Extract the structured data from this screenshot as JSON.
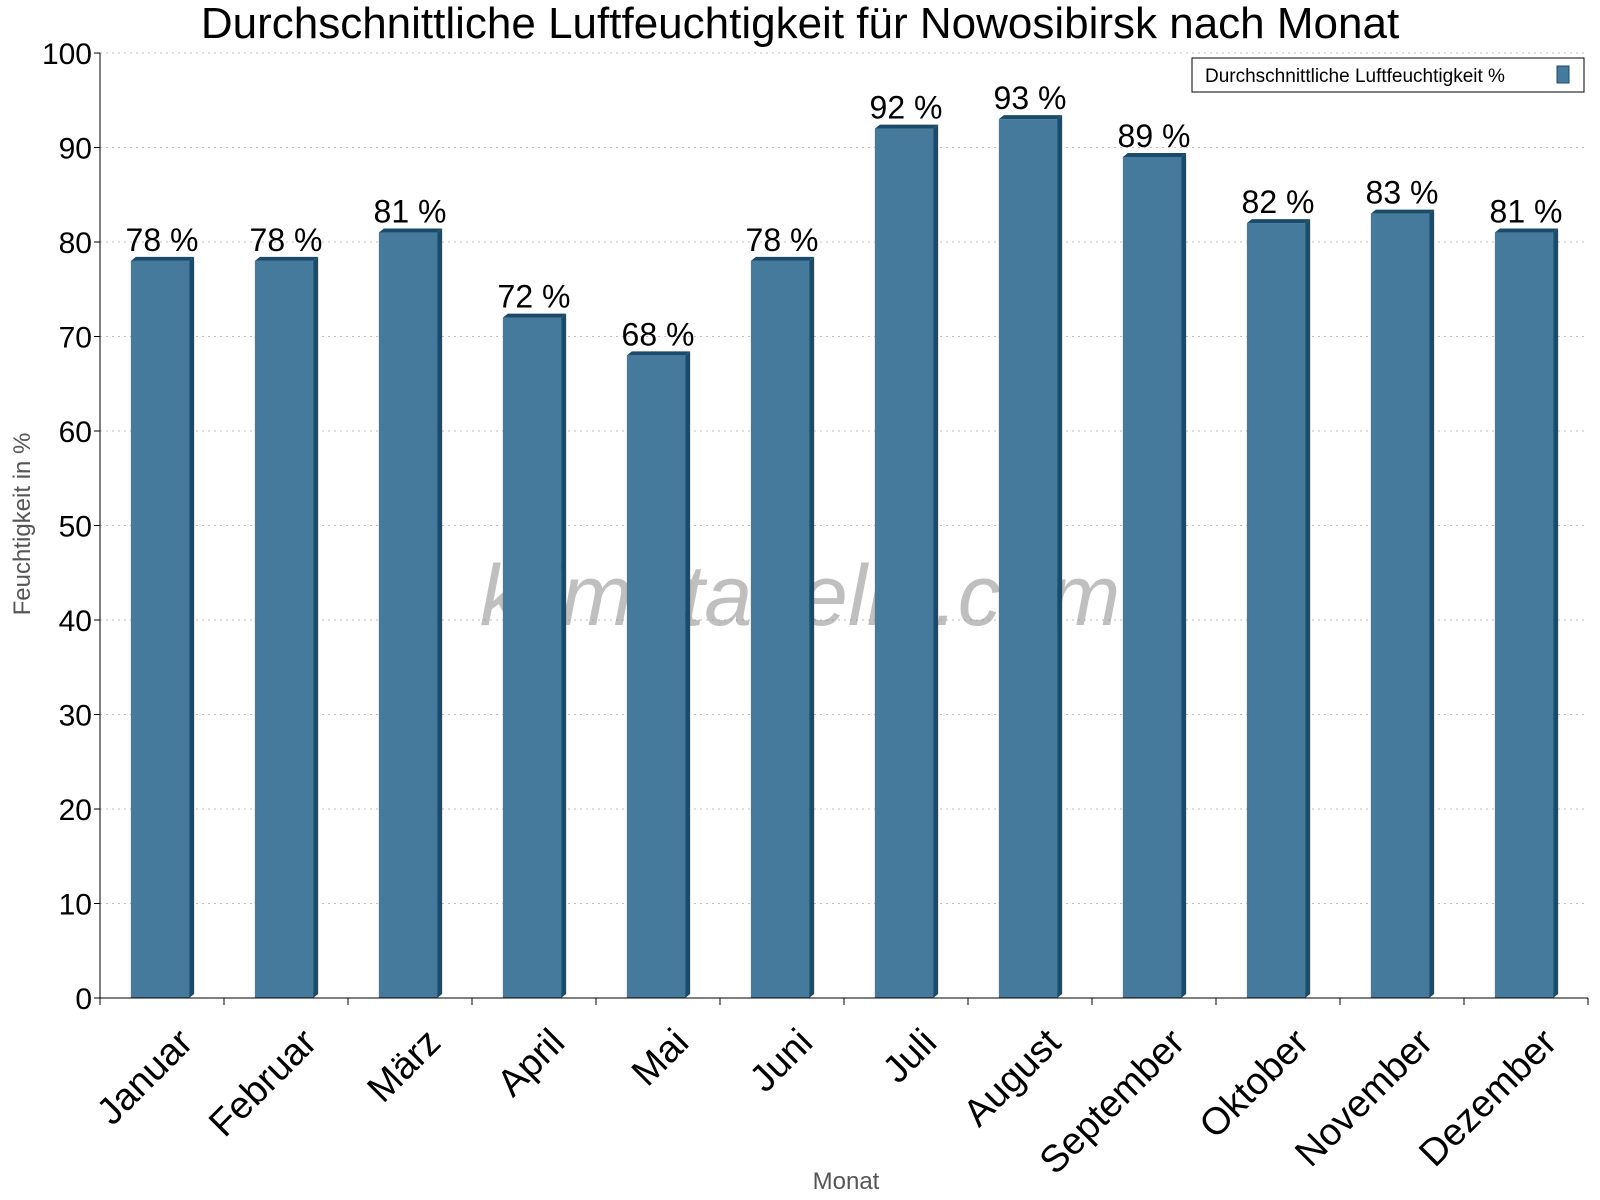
{
  "chart_data": {
    "type": "bar",
    "title": "Durchschnittliche Luftfeuchtigkeit für Nowosibirsk nach Monat",
    "xlabel": "Monat",
    "ylabel": "Feuchtigkeit in %",
    "ylim": [
      0,
      100
    ],
    "yticks": [
      0,
      10,
      20,
      30,
      40,
      50,
      60,
      70,
      80,
      90,
      100
    ],
    "grid": true,
    "legend_position": "top-right",
    "categories": [
      "Januar",
      "Februar",
      "März",
      "April",
      "Mai",
      "Juni",
      "Juli",
      "August",
      "September",
      "Oktober",
      "November",
      "Dezember"
    ],
    "series": [
      {
        "name": "Durchschnittliche Luftfeuchtigkeit %",
        "values": [
          78,
          78,
          81,
          72,
          68,
          78,
          92,
          93,
          89,
          82,
          83,
          81
        ],
        "labels": [
          "78 %",
          "78 %",
          "81 %",
          "72 %",
          "68 %",
          "78 %",
          "92 %",
          "93 %",
          "89 %",
          "82 %",
          "83 %",
          "81 %"
        ],
        "color": "#457a9c",
        "side_color": "#1b4b6b"
      }
    ]
  },
  "watermark": "klimatabelle.com"
}
